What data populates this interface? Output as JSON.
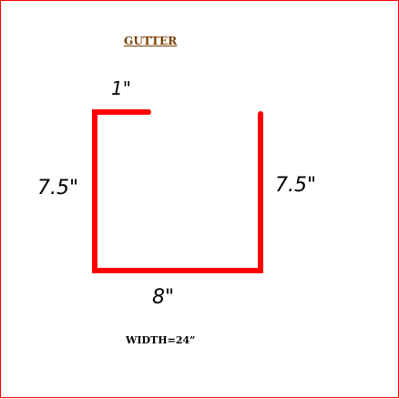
{
  "diagram": {
    "title": "GUTTER",
    "dimensions": {
      "top_flange": "1\"",
      "left_side": "7.5\"",
      "right_side": "7.5\"",
      "bottom": "8\""
    },
    "width_note": "WIDTH=24”",
    "colors": {
      "border": "#ff0000",
      "profile_line": "#ff0000",
      "title": "#7a3d00"
    }
  }
}
